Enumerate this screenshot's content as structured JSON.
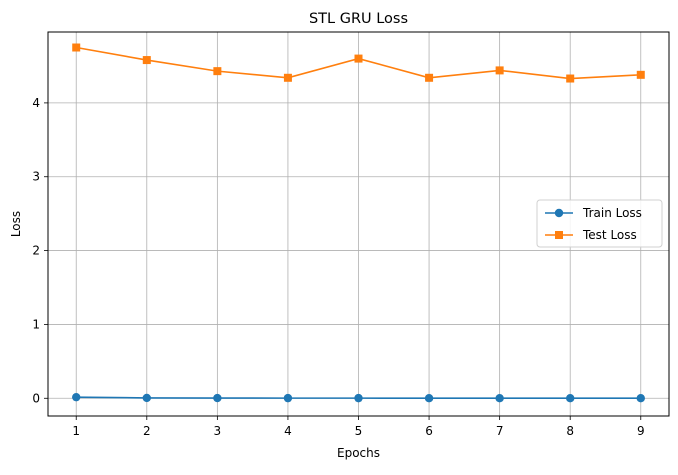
{
  "chart_data": {
    "type": "line",
    "title": "STL GRU Loss",
    "xlabel": "Epochs",
    "ylabel": "Loss",
    "x": [
      1,
      2,
      3,
      4,
      5,
      6,
      7,
      8,
      9
    ],
    "xlim": [
      0.6,
      9.4
    ],
    "ylim": [
      -0.24,
      4.96
    ],
    "xticks": [
      1,
      2,
      3,
      4,
      5,
      6,
      7,
      8,
      9
    ],
    "yticks": [
      0,
      1,
      2,
      3,
      4
    ],
    "grid": true,
    "legend_position": "center-right",
    "series": [
      {
        "name": "Train Loss",
        "marker": "circle",
        "color": "#1f77b4",
        "values": [
          0.015,
          0.005,
          0.003,
          0.002,
          0.002,
          0.001,
          0.001,
          0.001,
          0.001
        ]
      },
      {
        "name": "Test Loss",
        "marker": "square",
        "color": "#ff7f0e",
        "values": [
          4.75,
          4.58,
          4.43,
          4.34,
          4.6,
          4.34,
          4.44,
          4.33,
          4.38
        ]
      }
    ]
  }
}
